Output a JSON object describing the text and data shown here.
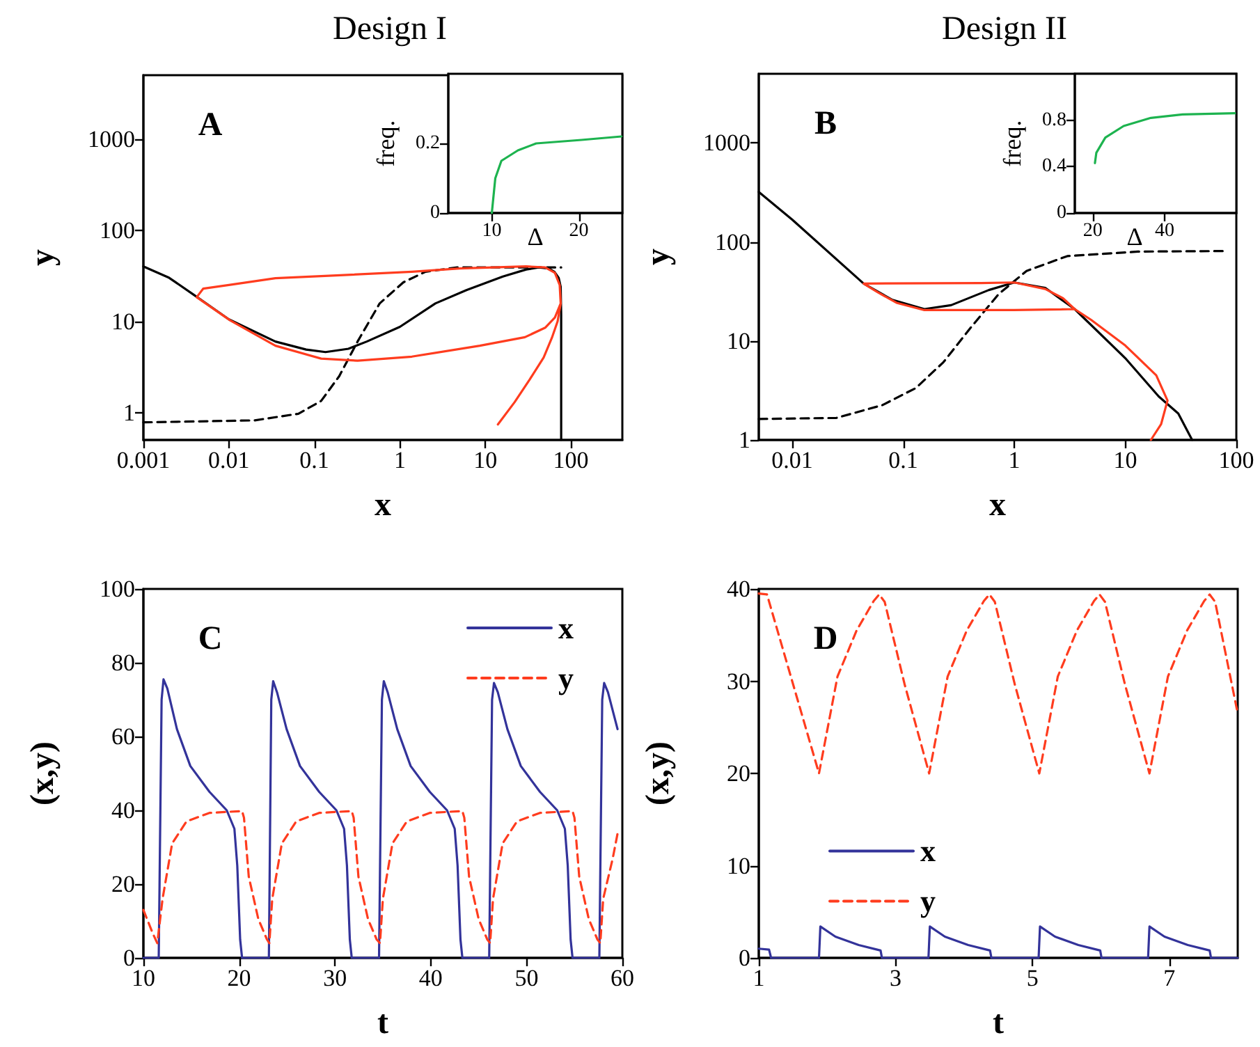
{
  "chart_data": [
    {
      "type": "line",
      "title": "Design I",
      "xlabel": "x",
      "ylabel": "y",
      "log": "xy",
      "marker": "none",
      "xlim": [
        0.001,
        400
      ],
      "ylim": [
        0.5,
        5000
      ],
      "xticks": [
        0.001,
        0.01,
        0.1,
        1,
        10,
        100
      ],
      "yticks": [
        1,
        10,
        100,
        1000
      ],
      "annotations": [
        "A"
      ],
      "series": [
        {
          "color": "#000000",
          "line_style": "solid",
          "x": [
            0.001,
            0.002,
            0.0039,
            0.01,
            0.035,
            0.08,
            0.135,
            0.25,
            0.41,
            1,
            2.6,
            6,
            16,
            30,
            42,
            55,
            64,
            72,
            76,
            77,
            77
          ],
          "values": [
            40,
            30,
            19.5,
            10.5,
            6,
            4.9,
            4.6,
            5,
            6,
            8.7,
            15.7,
            22,
            31,
            37,
            39,
            38,
            35,
            30,
            24,
            12,
            0.5
          ]
        },
        {
          "color": "#000000",
          "line_style": "dashed",
          "x": [
            0.001,
            0.02,
            0.065,
            0.12,
            0.195,
            0.32,
            0.58,
            1.1,
            2,
            4.7,
            77
          ],
          "values": [
            0.78,
            0.82,
            0.97,
            1.34,
            2.5,
            6,
            15.7,
            26.8,
            35,
            39,
            39
          ]
        },
        {
          "color": "#ff3c1e",
          "line_style": "solid",
          "x": [
            14,
            22,
            33,
            48,
            60,
            70,
            76,
            74,
            65,
            50,
            30,
            5,
            1.38,
            0.2,
            0.035,
            0.01,
            0.005,
            0.0042,
            0.0104,
            0.035,
            0.12,
            0.32,
            1.38,
            8.6,
            29,
            50,
            65,
            76
          ],
          "values": [
            0.74,
            1.3,
            2.3,
            4,
            6.6,
            10,
            15.7,
            25,
            34,
            39,
            40,
            38,
            35,
            32,
            29.7,
            25,
            22.8,
            18.4,
            10.2,
            5.4,
            3.9,
            3.7,
            4.1,
            5.4,
            6.7,
            8.5,
            11,
            15.7
          ]
        }
      ]
    },
    {
      "type": "line",
      "xlabel": "Δ",
      "ylabel": "freq.",
      "marker": "none",
      "xlim": [
        5,
        25
      ],
      "ylim": [
        0,
        0.4
      ],
      "xticks": [
        10,
        20
      ],
      "yticks": [
        0,
        0.2
      ],
      "series": [
        {
          "color": "#1db34f",
          "line_style": "solid",
          "x": [
            10,
            10.4,
            11.1,
            13,
            15.1,
            20.3,
            24.9
          ],
          "values": [
            0,
            0.1,
            0.15,
            0.18,
            0.2,
            0.21,
            0.22
          ]
        }
      ]
    },
    {
      "type": "line",
      "title": "Design II",
      "xlabel": "x",
      "ylabel": "y",
      "log": "xy",
      "marker": "none",
      "xlim": [
        0.005,
        100
      ],
      "ylim": [
        1,
        5000
      ],
      "xticks": [
        0.01,
        0.1,
        1,
        10,
        100
      ],
      "yticks": [
        1,
        10,
        100,
        1000
      ],
      "annotations": [
        "B"
      ],
      "series": [
        {
          "color": "#000000",
          "line_style": "solid",
          "x": [
            0.005,
            0.01,
            0.044,
            0.08,
            0.155,
            0.27,
            0.59,
            1,
            1.9,
            3.5,
            10,
            20,
            30,
            40
          ],
          "values": [
            320,
            168,
            38,
            26,
            21,
            23,
            32.7,
            39,
            34.4,
            21,
            6.7,
            2.75,
            1.85,
            1
          ]
        },
        {
          "color": "#000000",
          "line_style": "dashed",
          "x": [
            0.005,
            0.025,
            0.065,
            0.13,
            0.23,
            0.4,
            0.72,
            1.29,
            3,
            13,
            80
          ],
          "values": [
            1.63,
            1.67,
            2.25,
            3.35,
            6.1,
            13.4,
            29.6,
            51,
            72,
            80,
            81
          ]
        },
        {
          "color": "#ff3c1e",
          "line_style": "solid",
          "x": [
            17,
            21,
            24,
            19,
            10,
            4.9,
            3.5,
            1,
            0.155,
            0.087,
            0.059,
            0.044,
            0.5,
            1,
            1.9,
            2.75,
            3.5
          ],
          "values": [
            1,
            1.44,
            2.5,
            4.5,
            9,
            16.4,
            21,
            20.5,
            20.5,
            24.3,
            31,
            38,
            38.5,
            39,
            33.5,
            27,
            21
          ]
        }
      ]
    },
    {
      "type": "line",
      "xlabel": "Δ",
      "ylabel": "freq.",
      "marker": "none",
      "xlim": [
        15,
        60
      ],
      "ylim": [
        0,
        1.2
      ],
      "xticks": [
        20,
        40
      ],
      "yticks": [
        0,
        0.4,
        0.8
      ],
      "series": [
        {
          "color": "#1db34f",
          "line_style": "solid",
          "x": [
            20.6,
            21,
            23.5,
            28.6,
            36.2,
            45,
            59.6
          ],
          "values": [
            0.43,
            0.52,
            0.65,
            0.75,
            0.82,
            0.85,
            0.86
          ]
        }
      ]
    },
    {
      "type": "line",
      "xlabel": "t",
      "ylabel": "(x,y)",
      "marker": "none",
      "legend": "top right",
      "xlim": [
        10,
        60
      ],
      "ylim": [
        0,
        100
      ],
      "xticks": [
        10,
        20,
        30,
        40,
        50,
        60
      ],
      "yticks": [
        0,
        20,
        40,
        60,
        80,
        100
      ],
      "annotations": [
        "C"
      ],
      "series": [
        {
          "name": "x",
          "color": "#33339a",
          "line_style": "solid",
          "x": [
            10,
            11.6,
            11.9,
            12.1,
            12.5,
            13.5,
            14.9,
            16.9,
            18.7,
            19.5,
            19.8,
            20.1,
            20.3,
            23.1,
            23.35,
            23.55,
            23.95,
            24.95,
            26.35,
            28.35,
            30.15,
            30.95,
            31.25,
            31.55,
            31.75,
            34.6,
            34.9,
            35.1,
            35.5,
            36.5,
            37.9,
            39.9,
            41.7,
            42.5,
            42.8,
            43.1,
            43.3,
            46.1,
            46.4,
            46.6,
            47,
            48,
            49.4,
            51.4,
            53.2,
            54,
            54.3,
            54.6,
            54.8,
            57.6,
            57.9,
            58.1,
            58.5,
            59.5
          ],
          "values": [
            0,
            0,
            70,
            75.5,
            73,
            62,
            52,
            45,
            40,
            35,
            25,
            5,
            0,
            0,
            70,
            75,
            72,
            62,
            52,
            45,
            40,
            35,
            25,
            5,
            0,
            0,
            70,
            75,
            72,
            62,
            52,
            45,
            40,
            35,
            25,
            5,
            0,
            0,
            70,
            74.5,
            72,
            62,
            52,
            45,
            40,
            35,
            25,
            5,
            0,
            0,
            70,
            74.5,
            72,
            62
          ]
        },
        {
          "name": "y",
          "color": "#ff3c1e",
          "line_style": "dashed",
          "x": [
            10,
            11,
            11.45,
            12,
            13,
            14.5,
            16.9,
            20.3,
            20.5,
            21,
            22,
            22.9,
            23.15,
            23.45,
            24.45,
            25.95,
            28.35,
            31.75,
            31.95,
            32.45,
            33.45,
            34.35,
            34.7,
            35,
            36,
            37.5,
            39.9,
            43.3,
            43.5,
            44,
            45,
            45.9,
            46.2,
            46.5,
            47.5,
            49,
            51.4,
            54.8,
            55,
            55.5,
            56.5,
            57.4,
            57.7,
            58,
            59,
            59.5
          ],
          "values": [
            13,
            6.5,
            4,
            16,
            31,
            37,
            39.3,
            39.8,
            38,
            22,
            10.5,
            5,
            4,
            16,
            31,
            37,
            39.3,
            39.8,
            38,
            22,
            10.5,
            5,
            4,
            16,
            31,
            37,
            39.3,
            39.8,
            38,
            22,
            10.5,
            5,
            4,
            16,
            31,
            37,
            39.3,
            39.8,
            38,
            22,
            10.5,
            5,
            4,
            16,
            27,
            33.7
          ]
        }
      ]
    },
    {
      "type": "line",
      "xlabel": "t",
      "ylabel": "(x,y)",
      "marker": "none",
      "legend": "left",
      "xlim": [
        1,
        8
      ],
      "ylim": [
        0,
        40
      ],
      "xticks": [
        1,
        3,
        5,
        7
      ],
      "yticks": [
        0,
        10,
        20,
        30,
        40
      ],
      "annotations": [
        "D"
      ],
      "series": [
        {
          "name": "x",
          "color": "#33339a",
          "line_style": "solid",
          "x": [
            1,
            1.15,
            1.18,
            1.88,
            1.9,
            2.12,
            2.46,
            2.73,
            2.78,
            2.8,
            3.48,
            3.5,
            3.72,
            4.06,
            4.33,
            4.38,
            4.4,
            5.09,
            5.11,
            5.33,
            5.67,
            5.94,
            5.99,
            6.01,
            6.69,
            6.71,
            6.93,
            7.27,
            7.54,
            7.59,
            7.61,
            8
          ],
          "values": [
            1,
            0.9,
            0,
            0,
            3.4,
            2.3,
            1.4,
            0.9,
            0.8,
            0,
            0,
            3.4,
            2.3,
            1.4,
            0.9,
            0.8,
            0,
            0,
            3.4,
            2.3,
            1.4,
            0.9,
            0.8,
            0,
            0,
            3.4,
            2.3,
            1.4,
            0.9,
            0.8,
            0,
            0
          ]
        },
        {
          "name": "y",
          "color": "#ff3c1e",
          "line_style": "dashed",
          "x": [
            1,
            1.12,
            1.5,
            1.88,
            2.15,
            2.43,
            2.68,
            2.76,
            2.84,
            3.13,
            3.49,
            3.76,
            4.04,
            4.29,
            4.37,
            4.45,
            4.74,
            5.1,
            5.37,
            5.65,
            5.9,
            5.98,
            6.06,
            6.35,
            6.71,
            6.98,
            7.26,
            7.51,
            7.59,
            7.67,
            8
          ],
          "values": [
            39.5,
            39.4,
            29.7,
            20,
            30.5,
            35.5,
            38.7,
            39.4,
            38.6,
            29.7,
            20,
            30.5,
            35.5,
            38.7,
            39.4,
            38.6,
            29.7,
            20,
            30.5,
            35.5,
            38.7,
            39.4,
            38.6,
            29.7,
            20,
            30.5,
            35.5,
            38.7,
            39.4,
            38.6,
            26.5
          ]
        }
      ]
    }
  ]
}
